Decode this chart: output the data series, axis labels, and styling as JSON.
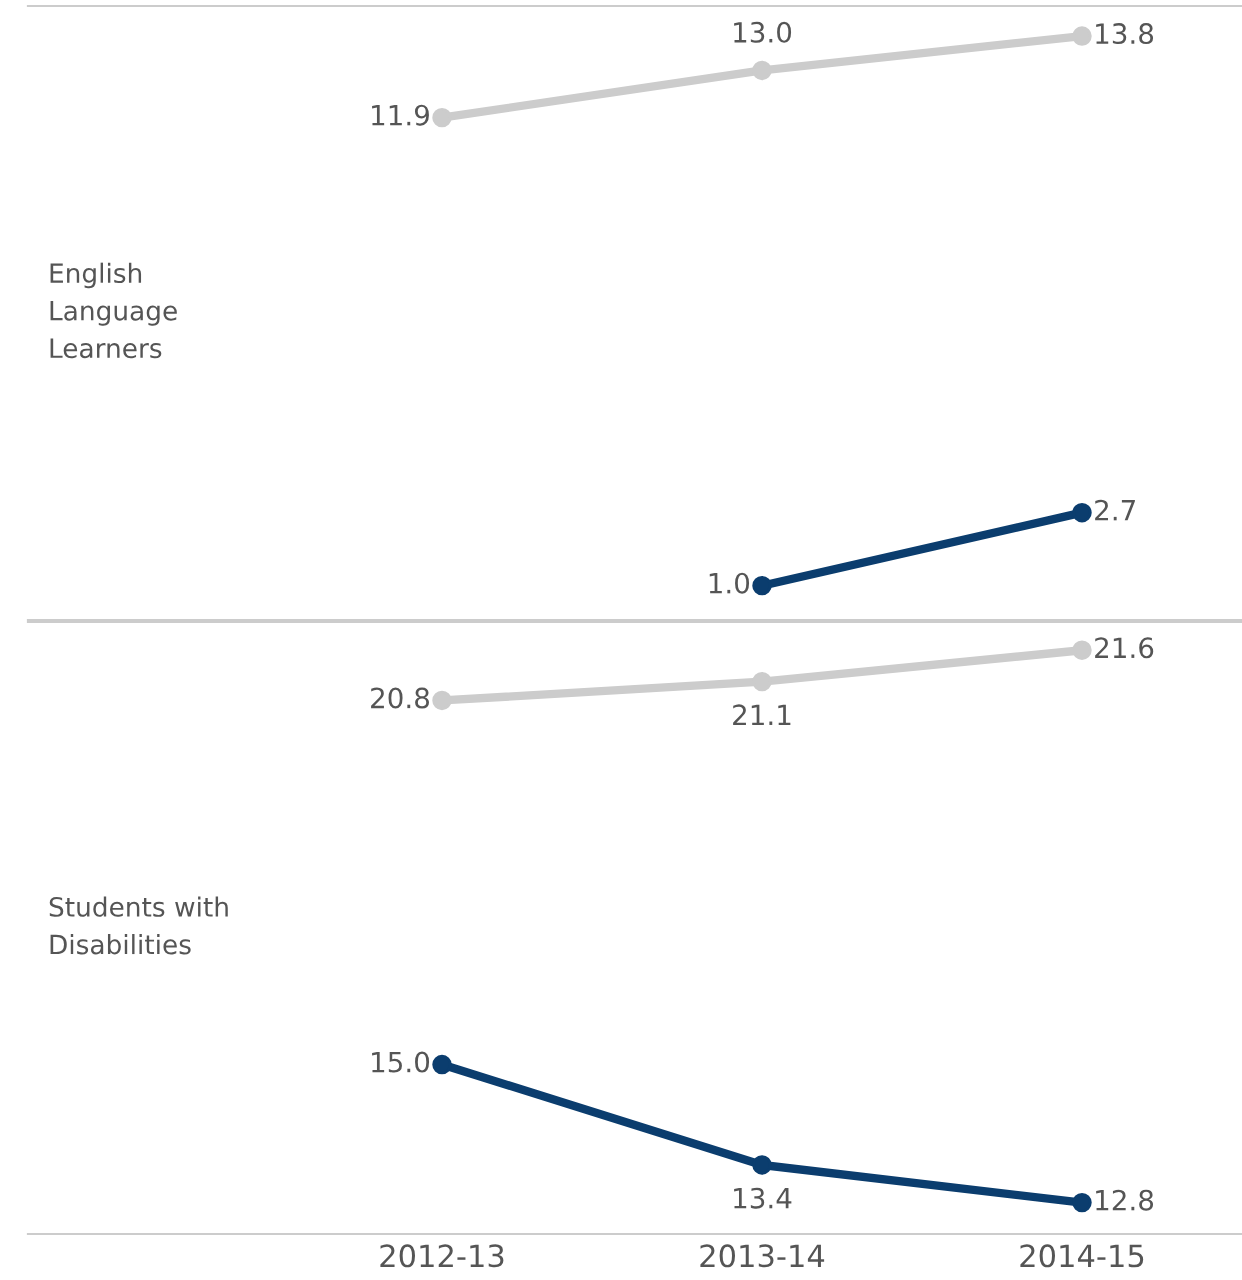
{
  "chart_data": [
    {
      "type": "line",
      "ylabel": "English\nLanguage\nLearners",
      "categories": [
        "2012-13",
        "2013-14",
        "2014-15"
      ],
      "ylim": [
        0.2,
        14.5
      ],
      "tick_labels": false,
      "marker": "circle",
      "grid": false,
      "legend": false,
      "series": [
        {
          "color": "#cccccc",
          "values": [
            11.9,
            13.0,
            13.8
          ],
          "value_labels": [
            "11.9",
            "13.0",
            "13.8"
          ]
        },
        {
          "color": "#0b3d6e",
          "values": [
            null,
            1.0,
            2.7
          ],
          "value_labels": [
            null,
            "1.0",
            "2.7"
          ]
        }
      ]
    },
    {
      "type": "line",
      "ylabel": "Students with\nDisabilities",
      "categories": [
        "2012-13",
        "2013-14",
        "2014-15"
      ],
      "ylim": [
        12.3,
        22.05
      ],
      "tick_labels": "x",
      "marker": "circle",
      "grid": false,
      "legend": false,
      "series": [
        {
          "color": "#cccccc",
          "values": [
            20.8,
            21.1,
            21.6
          ],
          "value_labels": [
            "20.8",
            "21.1",
            "21.6"
          ]
        },
        {
          "color": "#0b3d6e",
          "values": [
            15.0,
            13.4,
            12.8
          ],
          "value_labels": [
            "15.0",
            "13.4",
            "12.8"
          ]
        }
      ]
    }
  ]
}
